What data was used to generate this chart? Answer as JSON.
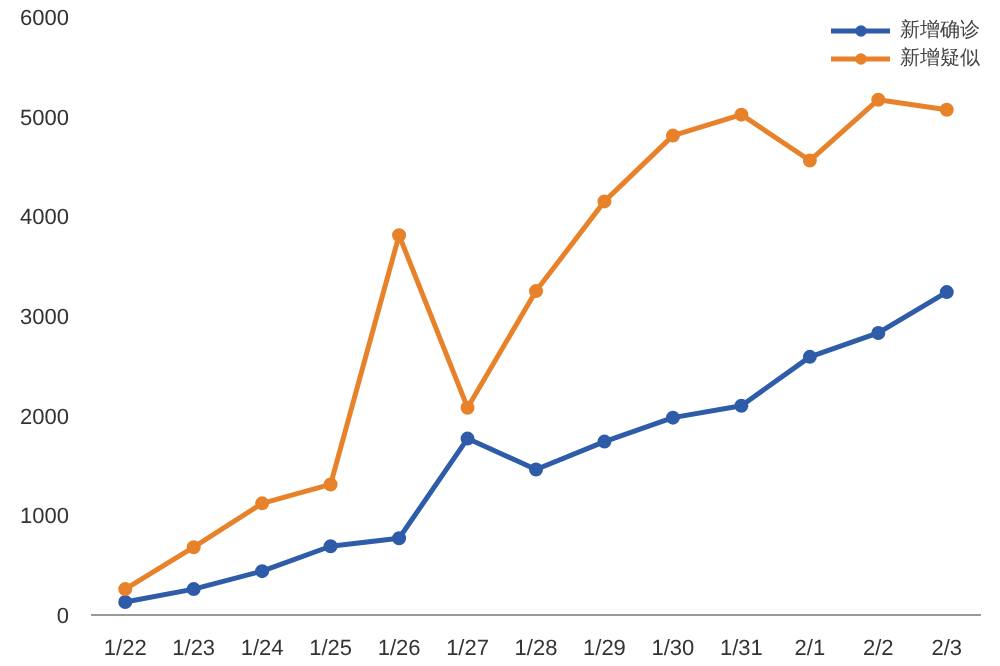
{
  "chart_data": {
    "type": "line",
    "categories": [
      "1/22",
      "1/23",
      "1/24",
      "1/25",
      "1/26",
      "1/27",
      "1/28",
      "1/29",
      "1/30",
      "1/31",
      "2/1",
      "2/2",
      "2/3"
    ],
    "series": [
      {
        "name": "新增确诊",
        "color": "#2e5ca8",
        "values": [
          130,
          260,
          440,
          690,
          770,
          1770,
          1460,
          1740,
          1980,
          2100,
          2590,
          2830,
          3240
        ]
      },
      {
        "name": "新增疑似",
        "color": "#e8822a",
        "values": [
          260,
          680,
          1120,
          1310,
          3810,
          2080,
          3250,
          4150,
          4810,
          5020,
          4560,
          5170,
          5070
        ]
      }
    ],
    "ylim": [
      0,
      6000
    ],
    "yticks": [
      0,
      1000,
      2000,
      3000,
      4000,
      5000,
      6000
    ],
    "grid": false,
    "legend": "top right",
    "marker": "circle",
    "line_style": "solid"
  }
}
